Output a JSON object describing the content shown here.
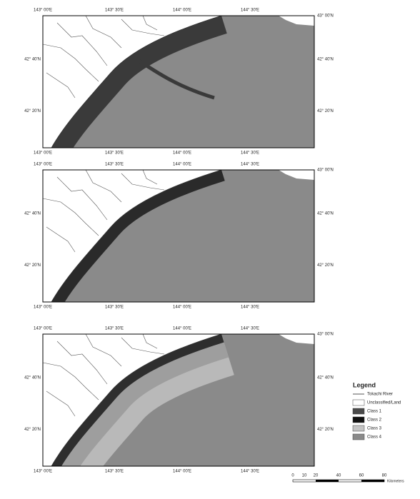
{
  "panels": [
    {
      "top_labels": [
        "143° 00'E",
        "143° 30'E",
        "144° 00'E",
        "144° 30'E"
      ],
      "bottom_labels": [
        "143° 00'E",
        "143° 30'E",
        "144° 00'E",
        "144° 30'E"
      ],
      "left_labels": [
        "42° 40'N",
        "42° 20'N"
      ],
      "right_labels": [
        "43° 00'N",
        "42° 40'N",
        "42° 20'N"
      ]
    },
    {
      "top_labels": [
        "143° 00'E",
        "143° 30'E",
        "144° 00'E",
        "144° 30'E"
      ],
      "bottom_labels": [
        "143° 00'E",
        "143° 30'E",
        "144° 00'E",
        "144° 30'E"
      ],
      "left_labels": [
        "42° 40'N",
        "42° 20'N"
      ],
      "right_labels": [
        "43° 00'N",
        "42° 40'N",
        "42° 20'N"
      ]
    },
    {
      "top_labels": [
        "143° 00'E",
        "143° 30'E",
        "144° 00'E",
        "144° 30'E"
      ],
      "bottom_labels": [
        "143° 00'E",
        "143° 30'E",
        "144° 00'E",
        "144° 30'E"
      ],
      "left_labels": [
        "42° 40'N",
        "42° 20'N"
      ],
      "right_labels": [
        "43° 00'N",
        "42° 40'N",
        "42° 20'N"
      ]
    }
  ],
  "legend": {
    "title": "Legend",
    "items": [
      "Tokachi River",
      "Unclassified/Land",
      "Class 1",
      "Class 2",
      "Class 3",
      "Class 4"
    ]
  },
  "scale_bar": {
    "ticks": [
      "0",
      "10",
      "20",
      "40",
      "60",
      "80"
    ],
    "unit": "Kilometers"
  }
}
